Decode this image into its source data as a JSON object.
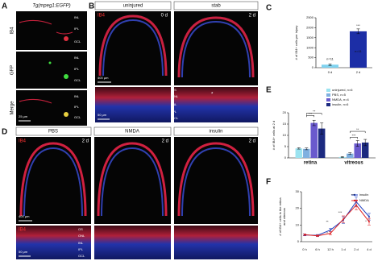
{
  "panel_a": {
    "letter": "A",
    "title": "Tg(mpeg1:EGFP)",
    "rows": [
      "IB4",
      "GFP",
      "Merge"
    ],
    "layers": [
      "INL",
      "IPL",
      "GCL"
    ],
    "scale": "25 µm"
  },
  "panel_b": {
    "letter": "B",
    "columns": [
      "uninjured",
      "stab"
    ],
    "times": [
      "0 d",
      "2 d"
    ],
    "stain": "IB4",
    "scale_large": "400 µm",
    "scale_small": "50 µm",
    "layers": [
      "OS",
      "ONL",
      "INL",
      "IPL",
      "GCL"
    ],
    "marker": "*"
  },
  "panel_d": {
    "letter": "D",
    "columns": [
      "PBS",
      "NMDA",
      "insulin"
    ],
    "time": "2 d",
    "stain": "IB4",
    "scale_large": "400 µm",
    "scale_small": "50 µm",
    "layers": [
      "OS",
      "ONL",
      "INL",
      "IPL",
      "GCL"
    ]
  },
  "chart_data": [
    {
      "type": "bar",
      "letter": "C",
      "y_label": "# of IB4+ cells per injury",
      "categories": [
        "0 d",
        "2 d"
      ],
      "values": [
        150,
        1820
      ],
      "errors": [
        40,
        120
      ],
      "colors": [
        "#7fd3f0",
        "#1c2ea6"
      ],
      "bar_notes": [
        "n=11",
        "n=11"
      ],
      "significance": "***",
      "ylim": [
        0,
        2500
      ],
      "yticks": [
        0,
        500,
        1000,
        1500,
        2000,
        2500
      ]
    },
    {
      "type": "grouped_bar",
      "letter": "E",
      "y_label": "# of IB4+ cells at 2 d",
      "categories": [
        "retina",
        "vitreous"
      ],
      "series": [
        {
          "name": "uninjured, n=6",
          "color": "#9be3f0",
          "values": [
            4.2,
            0.4
          ],
          "errors": [
            0.3,
            0.2
          ]
        },
        {
          "name": "PBS, n=5",
          "color": "#7fb0e0",
          "values": [
            4.0,
            1.9
          ],
          "errors": [
            0.4,
            0.4
          ]
        },
        {
          "name": "NMDA, n=4",
          "color": "#6a5acd",
          "values": [
            15.5,
            6.4
          ],
          "errors": [
            1.2,
            1.3
          ]
        },
        {
          "name": "insulin, n=6",
          "color": "#1c2a80",
          "values": [
            13.0,
            6.8
          ],
          "errors": [
            2.5,
            1.4
          ]
        }
      ],
      "significance": [
        "**",
        "***",
        "***",
        "**"
      ],
      "ylim": [
        0,
        20
      ],
      "yticks": [
        0,
        5,
        10,
        15,
        20
      ]
    },
    {
      "type": "line",
      "letter": "F",
      "y_label": [
        "# of IB4+ cells in the retina",
        "and vitreous"
      ],
      "categories": [
        "0 h",
        "6 h",
        "12 h",
        "1 d",
        "2 d",
        "4 d"
      ],
      "series": [
        {
          "name": "insulin",
          "color": "#1f3fbf",
          "values": [
            4,
            3.8,
            7,
            13,
            24,
            15
          ],
          "errors": [
            0.5,
            0.5,
            1,
            2,
            3,
            2
          ]
        },
        {
          "name": "NMDA",
          "color": "#e02020",
          "values": [
            4.2,
            3.5,
            5,
            13.5,
            22,
            12
          ],
          "errors": [
            0.5,
            0.5,
            1,
            2,
            3,
            2
          ]
        }
      ],
      "significance": [
        "*",
        "**",
        "***",
        "***",
        "*"
      ],
      "ylim": [
        0,
        30
      ],
      "yticks": [
        0,
        10,
        20,
        30
      ]
    }
  ]
}
